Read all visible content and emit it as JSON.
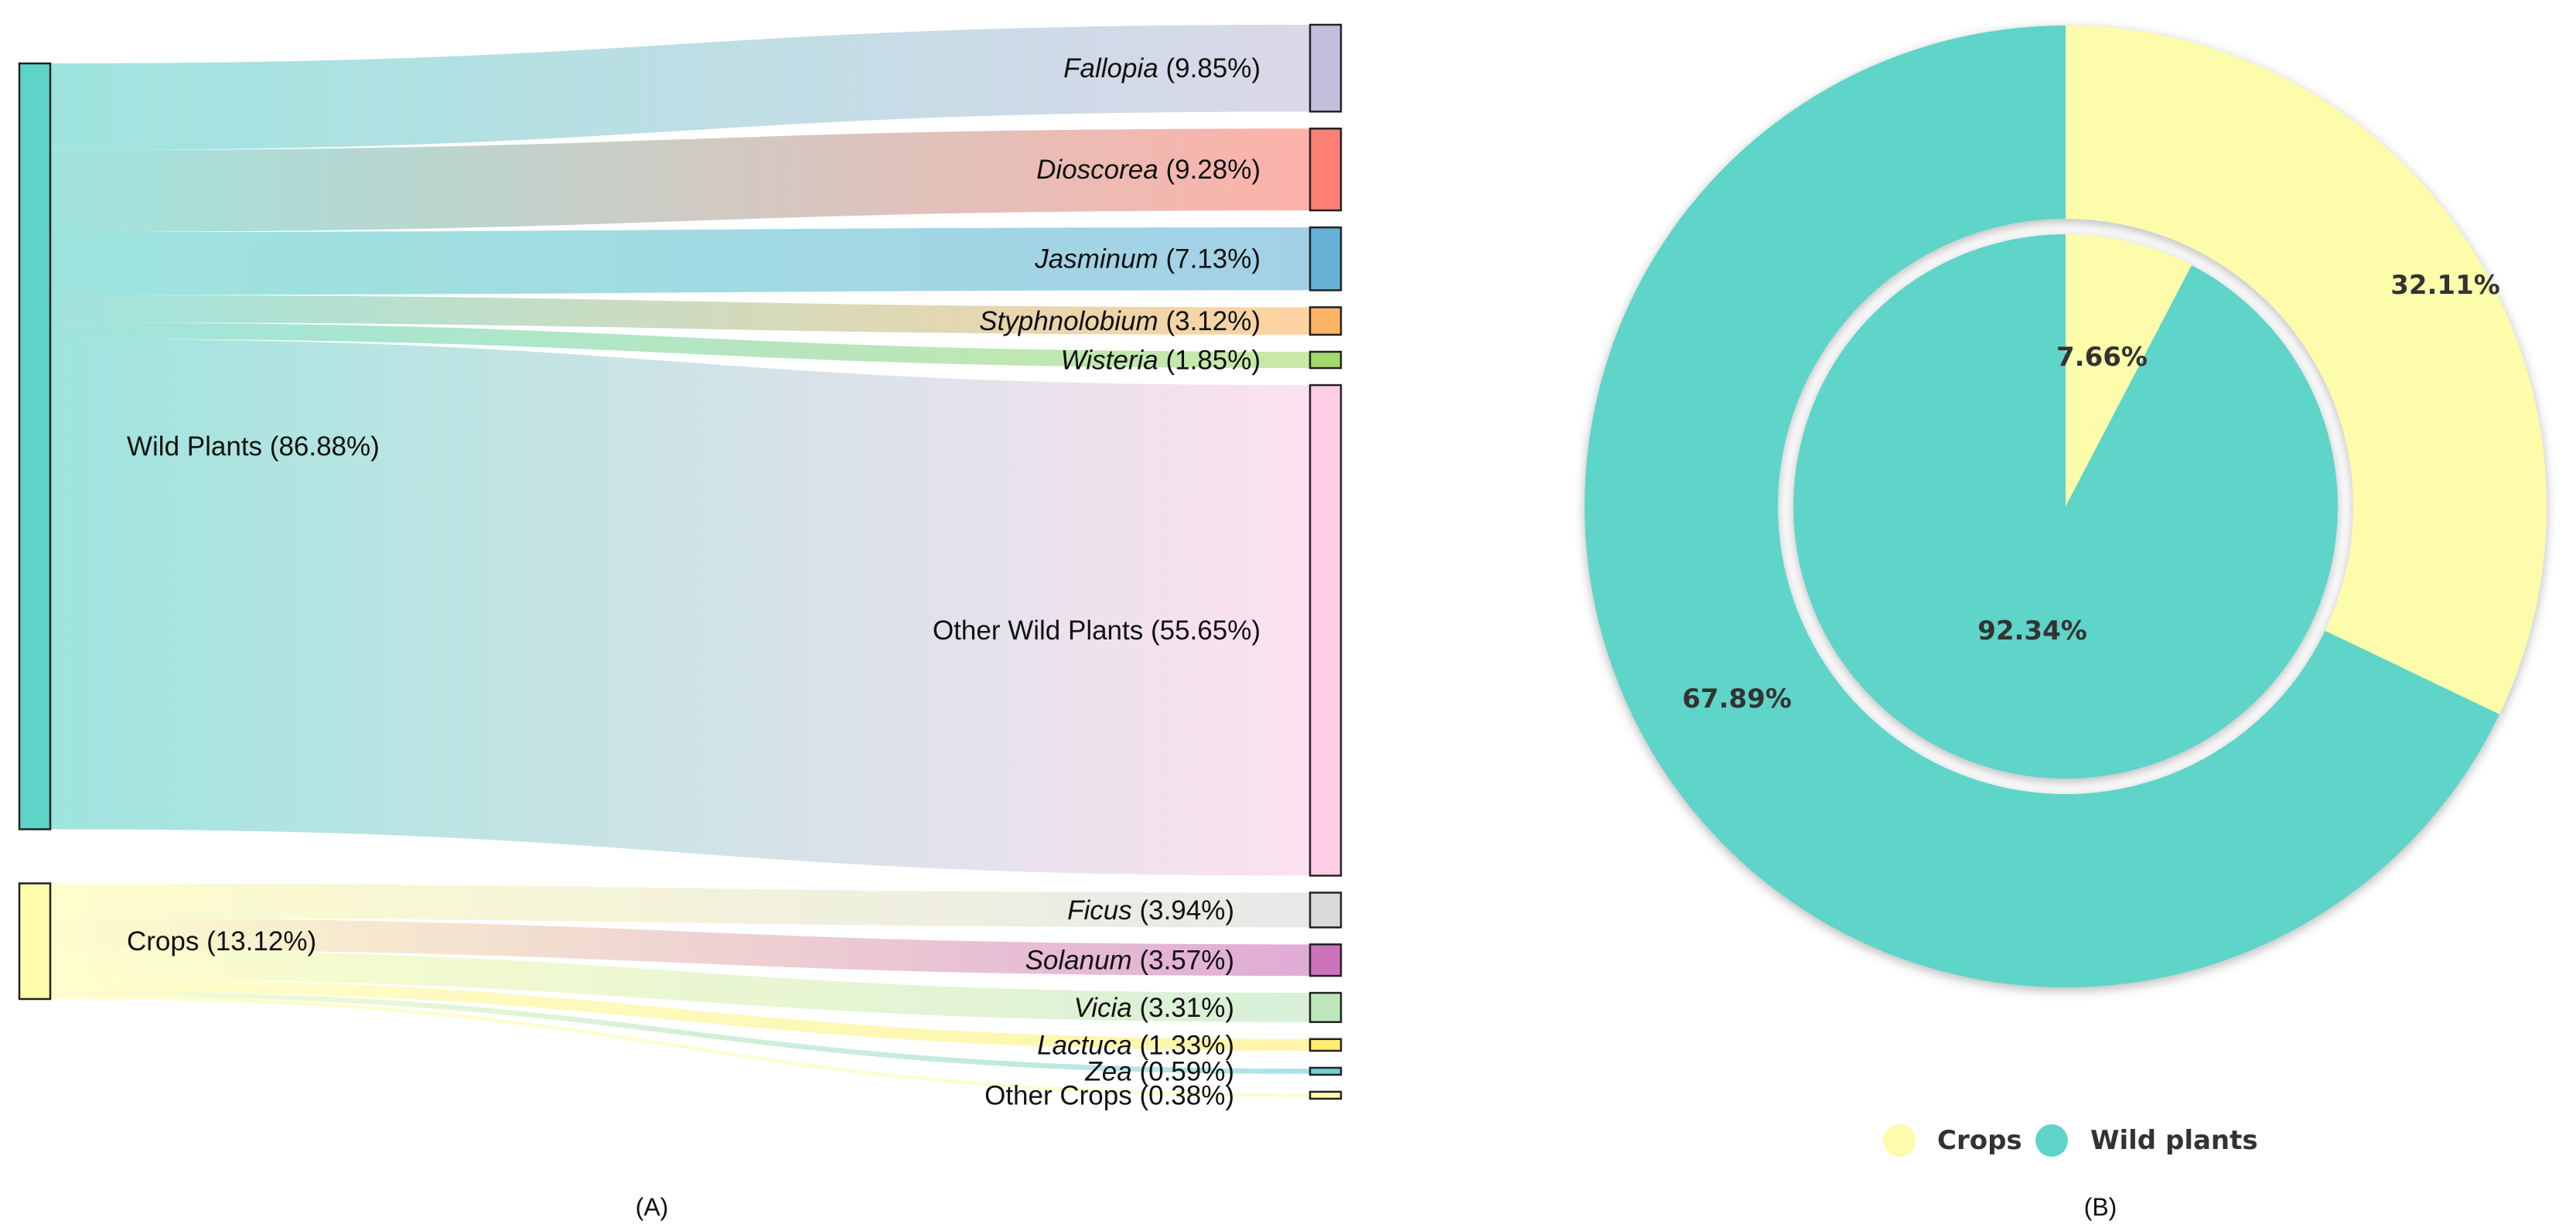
{
  "chart_data": [
    {
      "type": "sankey",
      "panel_label": "(A)",
      "sources": [
        {
          "id": "wild",
          "name": "Wild Plants",
          "pct_text": "(86.88%)",
          "value": 86.88,
          "color": "#5ed3c8"
        },
        {
          "id": "crops",
          "name": "Crops",
          "pct_text": "(13.12%)",
          "value": 13.12,
          "color": "#fdfcab"
        }
      ],
      "targets": [
        {
          "id": "fallopia",
          "source": "wild",
          "name": "Fallopia",
          "italic": true,
          "pct_text": "(9.85%)",
          "value": 9.85,
          "color": "#c2bedb"
        },
        {
          "id": "dioscorea",
          "source": "wild",
          "name": "Dioscorea",
          "italic": true,
          "pct_text": "(9.28%)",
          "value": 9.28,
          "color": "#fb7f72"
        },
        {
          "id": "jasminum",
          "source": "wild",
          "name": "Jasminum",
          "italic": true,
          "pct_text": "(7.13%)",
          "value": 7.13,
          "color": "#66b1d6"
        },
        {
          "id": "styphnolobium",
          "source": "wild",
          "name": "Styphnolobium",
          "italic": true,
          "pct_text": "(3.12%)",
          "value": 3.12,
          "color": "#fdb462"
        },
        {
          "id": "wisteria",
          "source": "wild",
          "name": "Wisteria",
          "italic": true,
          "pct_text": "(1.85%)",
          "value": 1.85,
          "color": "#a3d86a"
        },
        {
          "id": "other_wild",
          "source": "wild",
          "name": "Other Wild Plants",
          "italic": false,
          "pct_text": "(55.65%)",
          "value": 55.65,
          "color": "#fccde5"
        },
        {
          "id": "ficus",
          "source": "crops",
          "name": "Ficus",
          "italic": true,
          "pct_text": "(3.94%)",
          "value": 3.94,
          "color": "#d9d9d9"
        },
        {
          "id": "solanum",
          "source": "crops",
          "name": "Solanum",
          "italic": true,
          "pct_text": "(3.57%)",
          "value": 3.57,
          "color": "#cc73bb"
        },
        {
          "id": "vicia",
          "source": "crops",
          "name": "Vicia",
          "italic": true,
          "pct_text": "(3.31%)",
          "value": 3.31,
          "color": "#bde6bc"
        },
        {
          "id": "lactuca",
          "source": "crops",
          "name": "Lactuca",
          "italic": true,
          "pct_text": "(1.33%)",
          "value": 1.33,
          "color": "#ffed70"
        },
        {
          "id": "zea",
          "source": "crops",
          "name": "Zea",
          "italic": true,
          "pct_text": "(0.59%)",
          "value": 0.59,
          "color": "#74cfd6"
        },
        {
          "id": "other_crops",
          "source": "crops",
          "name": "Other Crops",
          "italic": false,
          "pct_text": "(0.38%)",
          "value": 0.38,
          "color": "#fdfcab"
        }
      ]
    },
    {
      "type": "donut",
      "panel_label": "(B)",
      "legend": {
        "position": "bottom",
        "items": [
          {
            "name": "Crops",
            "color": "#fcfcaa"
          },
          {
            "name": "Wild plants",
            "color": "#5fd4c8"
          }
        ]
      },
      "outer_ring": [
        {
          "name": "Crops",
          "value": 32.11,
          "label": "32.11%"
        },
        {
          "name": "Wild plants",
          "value": 67.89,
          "label": "67.89%"
        }
      ],
      "inner_pie": [
        {
          "name": "Crops",
          "value": 7.66,
          "label": "7.66%"
        },
        {
          "name": "Wild plants",
          "value": 92.34,
          "label": "92.34%"
        }
      ]
    }
  ]
}
